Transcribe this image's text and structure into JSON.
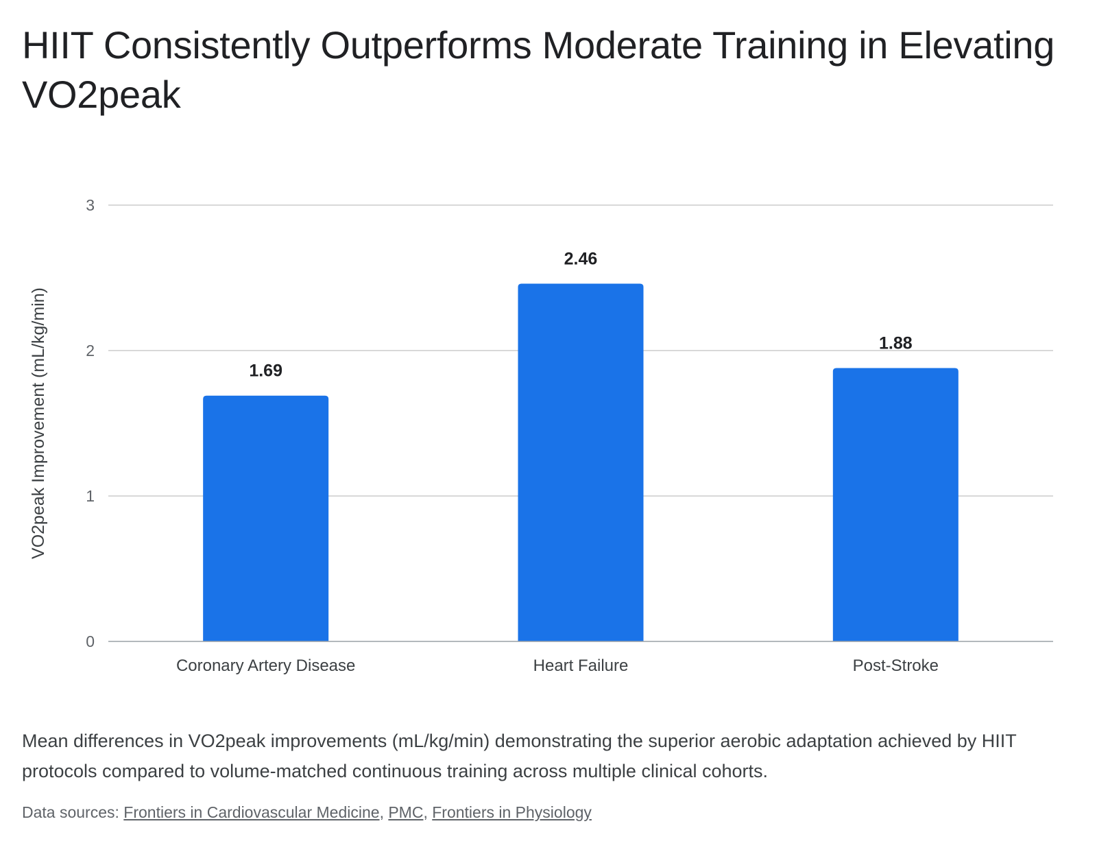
{
  "chart_data": {
    "type": "bar",
    "title": "HIIT Consistently Outperforms Moderate Training in Elevating VO2peak",
    "categories": [
      "Coronary Artery Disease",
      "Heart Failure",
      "Post-Stroke"
    ],
    "values": [
      1.69,
      2.46,
      1.88
    ],
    "value_labels": [
      "1.69",
      "2.46",
      "1.88"
    ],
    "xlabel": "",
    "ylabel": "VO2peak Improvement (mL/kg/min)",
    "ylim": [
      0,
      3
    ],
    "yticks": [
      0,
      1,
      2,
      3
    ],
    "ytick_labels": [
      "0",
      "1",
      "2",
      "3"
    ],
    "grid": true,
    "legend": "none",
    "bar_color": "#1a73e8"
  },
  "caption": "Mean differences in VO2peak improvements (mL/kg/min) demonstrating the superior aerobic adaptation achieved by HIIT protocols compared to volume-matched continuous training across multiple clinical cohorts.",
  "sources": {
    "prefix": "Data sources: ",
    "links": [
      "Frontiers in Cardiovascular Medicine",
      "PMC",
      "Frontiers in Physiology"
    ],
    "separator": ", "
  }
}
